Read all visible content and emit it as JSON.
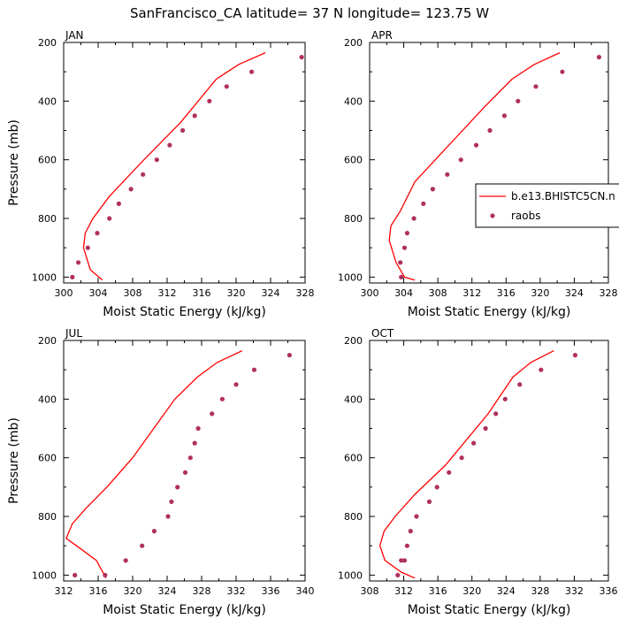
{
  "figure": {
    "title": "SanFrancisco_CA  latitude= 37 N longitude= 123.75 W"
  },
  "legend": {
    "placement": "right-middle of APR panel",
    "entries": [
      {
        "label": "b.e13.BHISTC5CN.n",
        "style": "line",
        "color": "#ff0000"
      },
      {
        "label": "raobs",
        "style": "marker",
        "color": "#b03060"
      }
    ]
  },
  "colors": {
    "model_line": "#ff0000",
    "raobs_marker": "#b03060"
  },
  "chart_data": [
    {
      "type": "line",
      "panel": "JAN",
      "xlabel": "Moist Static Energy (kJ/kg)",
      "ylabel": "Pressure (mb)",
      "xlim": [
        300,
        328
      ],
      "ylim": [
        1020,
        200
      ],
      "xticks": [
        "300",
        "304",
        "308",
        "312",
        "316",
        "320",
        "324",
        "328"
      ],
      "yticks": [
        "200",
        "400",
        "600",
        "800",
        "1000"
      ],
      "grid": false,
      "series": [
        {
          "name": "b.e13.BHISTC5CN.n",
          "kind": "line",
          "x": [
            323.4,
            320.3,
            317.7,
            313.5,
            309.3,
            305.3,
            303.4,
            302.5,
            302.3,
            303.1,
            304.5
          ],
          "y": [
            235,
            275,
            325,
            475,
            600,
            725,
            800,
            850,
            900,
            975,
            1010
          ]
        },
        {
          "name": "raobs",
          "kind": "marker",
          "x": [
            327.6,
            321.8,
            318.9,
            316.9,
            315.2,
            313.8,
            312.3,
            310.8,
            309.2,
            307.8,
            306.4,
            305.3,
            303.9,
            302.8,
            301.7,
            301.0
          ],
          "y": [
            250,
            300,
            350,
            400,
            450,
            500,
            550,
            600,
            650,
            700,
            750,
            800,
            850,
            900,
            950,
            1000
          ]
        }
      ]
    },
    {
      "type": "line",
      "panel": "APR",
      "xlabel": "Moist Static Energy (kJ/kg)",
      "ylabel": "",
      "xlim": [
        300,
        328
      ],
      "ylim": [
        1020,
        200
      ],
      "xticks": [
        "300",
        "304",
        "308",
        "312",
        "316",
        "320",
        "324",
        "328"
      ],
      "yticks": [
        "200",
        "400",
        "600",
        "800",
        "1000"
      ],
      "grid": false,
      "series": [
        {
          "name": "b.e13.BHISTC5CN.n",
          "kind": "line",
          "x": [
            322.3,
            319.3,
            316.7,
            313.3,
            309.3,
            305.3,
            303.6,
            302.5,
            302.3,
            303.1,
            304.1,
            305.3
          ],
          "y": [
            235,
            275,
            325,
            425,
            550,
            675,
            775,
            825,
            875,
            950,
            1000,
            1010
          ]
        },
        {
          "name": "raobs",
          "kind": "marker",
          "x": [
            326.9,
            322.6,
            319.5,
            317.4,
            315.8,
            314.1,
            312.5,
            310.7,
            309.1,
            307.4,
            306.3,
            305.2,
            304.4,
            304.1,
            303.6,
            303.7
          ],
          "y": [
            250,
            300,
            350,
            400,
            450,
            500,
            550,
            600,
            650,
            700,
            750,
            800,
            850,
            900,
            950,
            1000
          ]
        }
      ]
    },
    {
      "type": "line",
      "panel": "JUL",
      "xlabel": "Moist Static Energy (kJ/kg)",
      "ylabel": "Pressure (mb)",
      "xlim": [
        312,
        340
      ],
      "ylim": [
        1020,
        200
      ],
      "xticks": [
        "312",
        "316",
        "320",
        "324",
        "328",
        "332",
        "336",
        "340"
      ],
      "yticks": [
        "200",
        "400",
        "600",
        "800",
        "1000"
      ],
      "grid": false,
      "series": [
        {
          "name": "b.e13.BHISTC5CN.n",
          "kind": "line",
          "x": [
            332.7,
            329.8,
            327.5,
            324.9,
            320.0,
            317.0,
            314.5,
            313.0,
            312.3,
            313.5,
            315.8,
            316.9
          ],
          "y": [
            235,
            275,
            325,
            400,
            600,
            700,
            775,
            825,
            875,
            900,
            950,
            1010
          ]
        },
        {
          "name": "raobs",
          "kind": "marker",
          "x": [
            338.2,
            334.1,
            332.0,
            330.4,
            329.2,
            327.6,
            327.2,
            326.7,
            326.1,
            325.2,
            324.5,
            324.1,
            322.5,
            321.1,
            319.2,
            316.8,
            313.3
          ],
          "y": [
            250,
            300,
            350,
            400,
            450,
            500,
            550,
            600,
            650,
            700,
            750,
            800,
            850,
            900,
            950,
            1000,
            1000
          ]
        }
      ]
    },
    {
      "type": "line",
      "panel": "OCT",
      "xlabel": "Moist Static Energy (kJ/kg)",
      "ylabel": "",
      "xlim": [
        308,
        336
      ],
      "ylim": [
        1020,
        200
      ],
      "xticks": [
        "308",
        "312",
        "316",
        "320",
        "324",
        "328",
        "332",
        "336"
      ],
      "yticks": [
        "200",
        "400",
        "600",
        "800",
        "1000"
      ],
      "grid": false,
      "series": [
        {
          "name": "b.e13.BHISTC5CN.n",
          "kind": "line",
          "x": [
            329.6,
            326.9,
            324.8,
            321.9,
            316.9,
            313.3,
            311.0,
            309.7,
            309.2,
            309.8,
            311.7,
            313.3
          ],
          "y": [
            235,
            275,
            325,
            450,
            625,
            725,
            800,
            850,
            900,
            950,
            990,
            1010
          ]
        },
        {
          "name": "raobs",
          "kind": "marker",
          "x": [
            332.1,
            328.1,
            325.6,
            323.9,
            322.8,
            321.6,
            320.2,
            318.8,
            317.3,
            315.9,
            315.0,
            313.5,
            312.8,
            312.4,
            312.1,
            311.7,
            311.3
          ],
          "y": [
            250,
            300,
            350,
            400,
            450,
            500,
            550,
            600,
            650,
            700,
            750,
            800,
            850,
            900,
            950,
            950,
            1000
          ]
        }
      ]
    }
  ]
}
